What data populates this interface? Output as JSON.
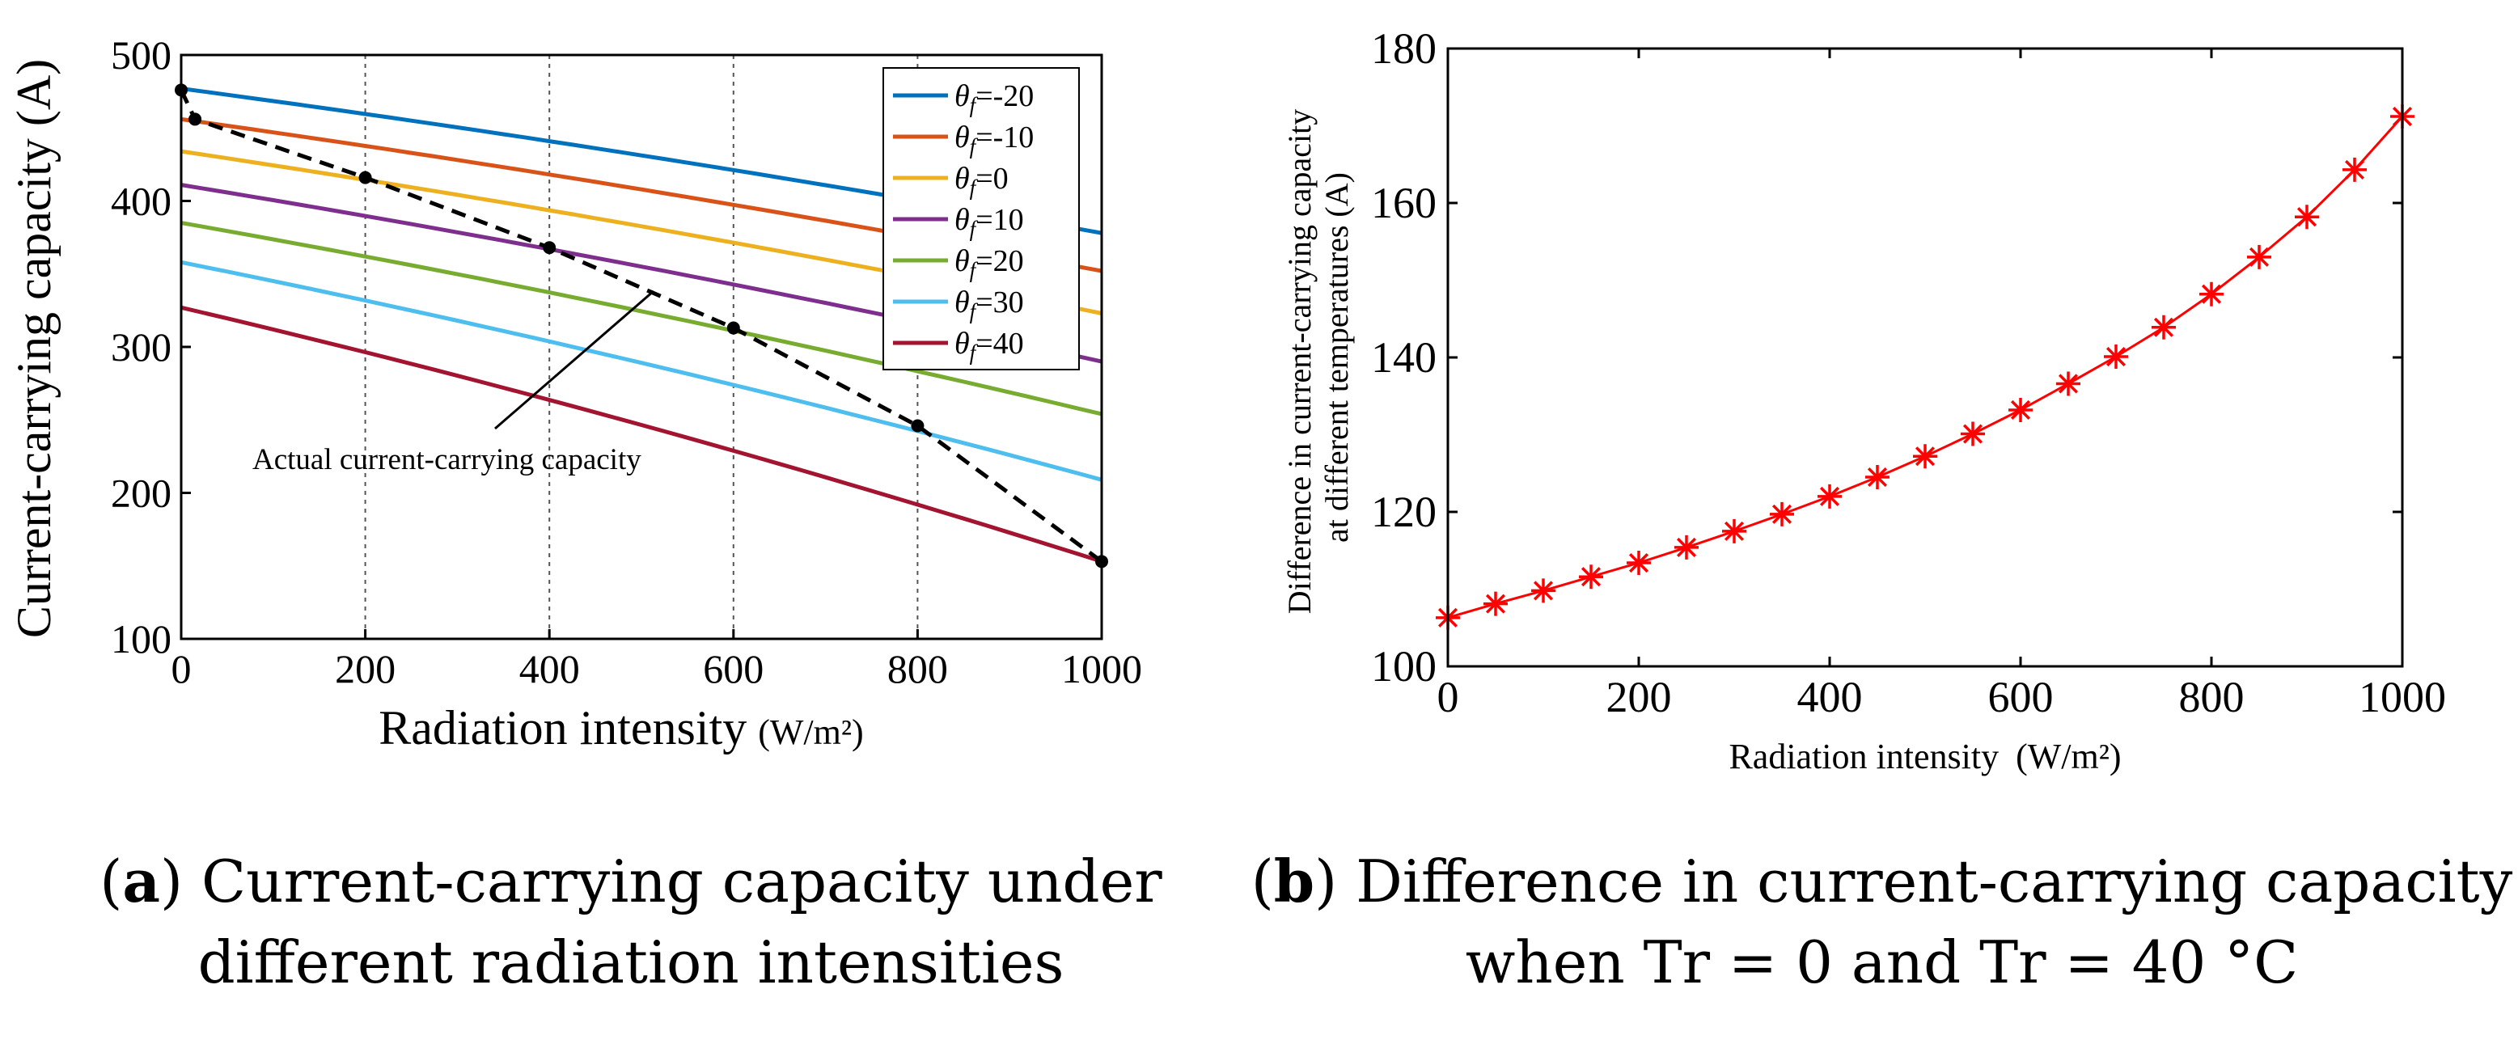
{
  "chart_data": [
    {
      "type": "line",
      "xlabel": "Radiation intensity",
      "xlabel_unit": "(W/m²)",
      "ylabel": "Current-carrying capacity (A)",
      "xlim": [
        0,
        1000
      ],
      "ylim": [
        100,
        500
      ],
      "xticks": [
        "0",
        "200",
        "400",
        "600",
        "800",
        "1000"
      ],
      "yticks": [
        "100",
        "200",
        "300",
        "400",
        "500"
      ],
      "vertical_gridlines_at": [
        200,
        400,
        600,
        800
      ],
      "x": [
        0,
        1000
      ],
      "series": [
        {
          "name": "θf=-20",
          "label_sym": "θ",
          "label_sub": "f",
          "label_val": "=-20",
          "color": "#0072BD",
          "values": [
            477,
            378
          ]
        },
        {
          "name": "θf=-10",
          "label_sym": "θ",
          "label_sub": "f",
          "label_val": "=-10",
          "color": "#D95319",
          "values": [
            456,
            352
          ]
        },
        {
          "name": "θf=0",
          "label_sym": "θ",
          "label_sub": "f",
          "label_val": "=0",
          "color": "#EDB120",
          "values": [
            434,
            323
          ]
        },
        {
          "name": "θf=10",
          "label_sym": "θ",
          "label_sub": "f",
          "label_val": "=10",
          "color": "#7E2F8E",
          "values": [
            411,
            290
          ]
        },
        {
          "name": "θf=20",
          "label_sym": "θ",
          "label_sub": "f",
          "label_val": "=20",
          "color": "#77AC30",
          "values": [
            385,
            254
          ]
        },
        {
          "name": "θf=30",
          "label_sym": "θ",
          "label_sub": "f",
          "label_val": "=30",
          "color": "#4DBEEE",
          "values": [
            358,
            209
          ]
        },
        {
          "name": "θf=40",
          "label_sym": "θ",
          "label_sub": "f",
          "label_val": "=40",
          "color": "#A2142F",
          "values": [
            327,
            153
          ]
        }
      ],
      "actual_curve": {
        "name": "Actual current-carrying capacity",
        "x": [
          0,
          15,
          200,
          400,
          600,
          800,
          1000
        ],
        "y": [
          476,
          456,
          416,
          368,
          313,
          246,
          153
        ]
      },
      "annotation": "Actual current-carrying capacity",
      "legend_position": "top-right"
    },
    {
      "type": "line",
      "xlabel": "Radiation intensity",
      "xlabel_unit": "(W/m²)",
      "ylabel_line1": "Difference in current-carrying capacity",
      "ylabel_line2": "at different temperatures (A)",
      "xlim": [
        0,
        1000
      ],
      "ylim": [
        100,
        180
      ],
      "xticks": [
        "0",
        "200",
        "400",
        "600",
        "800",
        "1000"
      ],
      "yticks": [
        "100",
        "120",
        "140",
        "160",
        "180"
      ],
      "color": "#FF0000",
      "marker": "asterisk",
      "x": [
        0,
        50,
        100,
        150,
        200,
        250,
        300,
        350,
        400,
        450,
        500,
        550,
        600,
        650,
        700,
        750,
        800,
        850,
        900,
        950,
        1000
      ],
      "values": [
        106.3,
        108.1,
        109.8,
        111.6,
        113.4,
        115.4,
        117.5,
        119.7,
        122.0,
        124.5,
        127.2,
        130.1,
        133.2,
        136.6,
        140.1,
        143.9,
        148.2,
        153.0,
        158.2,
        164.3,
        171.2
      ]
    }
  ],
  "captions": {
    "a": {
      "letter": "a",
      "line1": " Current-carrying capacity under",
      "line2": "different radiation intensities"
    },
    "b": {
      "letter": "b",
      "line1": " Difference in current-carrying capacity",
      "line2": "when Tr = 0 and Tr = 40 °C"
    }
  }
}
